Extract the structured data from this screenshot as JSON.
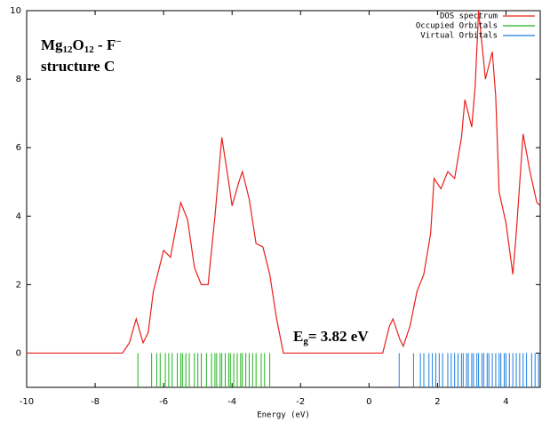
{
  "chart_data": {
    "type": "line",
    "xlabel": "Energy (eV)",
    "xlim": [
      -10,
      5
    ],
    "ylim": [
      -1,
      10
    ],
    "xticks": [
      -10,
      -8,
      -6,
      -4,
      -2,
      0,
      2,
      4
    ],
    "yticks": [
      0,
      2,
      4,
      6,
      8,
      10
    ],
    "grid": false,
    "legend": "upper right",
    "annotations": [
      {
        "text": [
          "Mg",
          "12",
          "O",
          "12",
          " - F",
          "−"
        ]
      },
      {
        "text": [
          "structure C"
        ]
      },
      {
        "text": [
          "E",
          "g",
          "= 3.82 eV"
        ]
      }
    ],
    "series": [
      {
        "name": "DOS spectrum",
        "color": "#e8201c",
        "style": "line",
        "x": [
          -10,
          -7.2,
          -7.0,
          -6.8,
          -6.6,
          -6.45,
          -6.3,
          -6.0,
          -5.8,
          -5.5,
          -5.3,
          -5.1,
          -4.9,
          -4.7,
          -4.5,
          -4.3,
          -4.1,
          -4.0,
          -3.8,
          -3.7,
          -3.5,
          -3.3,
          -3.1,
          -2.9,
          -2.7,
          -2.5,
          0.4,
          0.6,
          0.7,
          0.9,
          1.0,
          1.2,
          1.4,
          1.6,
          1.8,
          1.9,
          2.1,
          2.3,
          2.5,
          2.7,
          2.8,
          3.0,
          3.1,
          3.2,
          3.3,
          3.4,
          3.6,
          3.7,
          3.8,
          4.0,
          4.2,
          4.3,
          4.5,
          4.7,
          4.9,
          5.0
        ],
        "values": [
          0,
          0,
          0.3,
          1.0,
          0.3,
          0.6,
          1.8,
          3.0,
          2.8,
          4.4,
          3.9,
          2.5,
          2.0,
          2.0,
          4.0,
          6.3,
          5.0,
          4.3,
          5.0,
          5.3,
          4.5,
          3.2,
          3.1,
          2.3,
          1.0,
          0,
          0,
          0.8,
          1.0,
          0.4,
          0.2,
          0.8,
          1.8,
          2.3,
          3.5,
          5.1,
          4.8,
          5.3,
          5.1,
          6.3,
          7.4,
          6.6,
          7.8,
          10.0,
          9.0,
          8.0,
          8.8,
          7.5,
          4.7,
          3.8,
          2.3,
          3.5,
          6.4,
          5.3,
          4.4,
          4.3
        ]
      },
      {
        "name": "Occupied Orbitals",
        "color": "#1fb31f",
        "style": "impulse",
        "x": [
          -6.75,
          -6.35,
          -6.2,
          -6.1,
          -5.95,
          -5.85,
          -5.75,
          -5.6,
          -5.5,
          -5.45,
          -5.35,
          -5.25,
          -5.1,
          -5.0,
          -4.9,
          -4.75,
          -4.6,
          -4.5,
          -4.45,
          -4.35,
          -4.3,
          -4.2,
          -4.1,
          -4.05,
          -3.95,
          -3.85,
          -3.75,
          -3.7,
          -3.6,
          -3.5,
          -3.4,
          -3.3,
          -3.15,
          -3.05,
          -2.9
        ]
      },
      {
        "name": "Virtual Orbitals",
        "color": "#1c7fe0",
        "style": "impulse",
        "x": [
          0.88,
          1.3,
          1.5,
          1.6,
          1.75,
          1.85,
          1.95,
          2.05,
          2.15,
          2.3,
          2.4,
          2.5,
          2.6,
          2.7,
          2.75,
          2.85,
          2.9,
          3.0,
          3.05,
          3.15,
          3.2,
          3.3,
          3.35,
          3.45,
          3.5,
          3.6,
          3.7,
          3.8,
          3.85,
          3.95,
          4.0,
          4.1,
          4.2,
          4.3,
          4.4,
          4.5,
          4.6,
          4.75,
          4.85,
          4.95
        ]
      }
    ]
  }
}
